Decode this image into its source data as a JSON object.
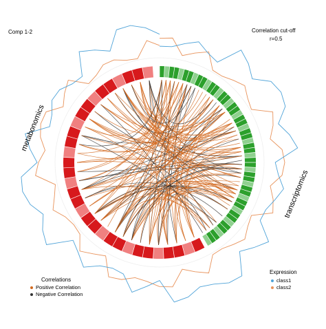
{
  "chart_data": {
    "type": "circos",
    "title": "Comp 1-2",
    "cutoff_title": "Correlation cut-off",
    "cutoff_value": "r=0.5",
    "blocks": [
      {
        "name": "metabonomics",
        "n_features": 32,
        "start_deg": 152,
        "end_deg": 356
      },
      {
        "name": "transcriptomics",
        "n_features": 50,
        "start_deg": 0,
        "end_deg": 150
      }
    ],
    "correlation_legend": {
      "title": "Correlations",
      "positive": {
        "label": "Positive Correlation",
        "color": "#d2691e"
      },
      "negative": {
        "label": "Negative Correlation",
        "color": "#333333"
      }
    },
    "expression_legend": {
      "title": "Expression",
      "class1": {
        "label": "class1",
        "color": "#4fa3d8"
      },
      "class2": {
        "label": "class2",
        "color": "#e8925a"
      }
    },
    "colors": {
      "metabonomics_dark": "#d7191c",
      "metabonomics_light": "#f08080",
      "transcriptomics_dark": "#2ca02c",
      "transcriptomics_light": "#8fd18f"
    }
  }
}
